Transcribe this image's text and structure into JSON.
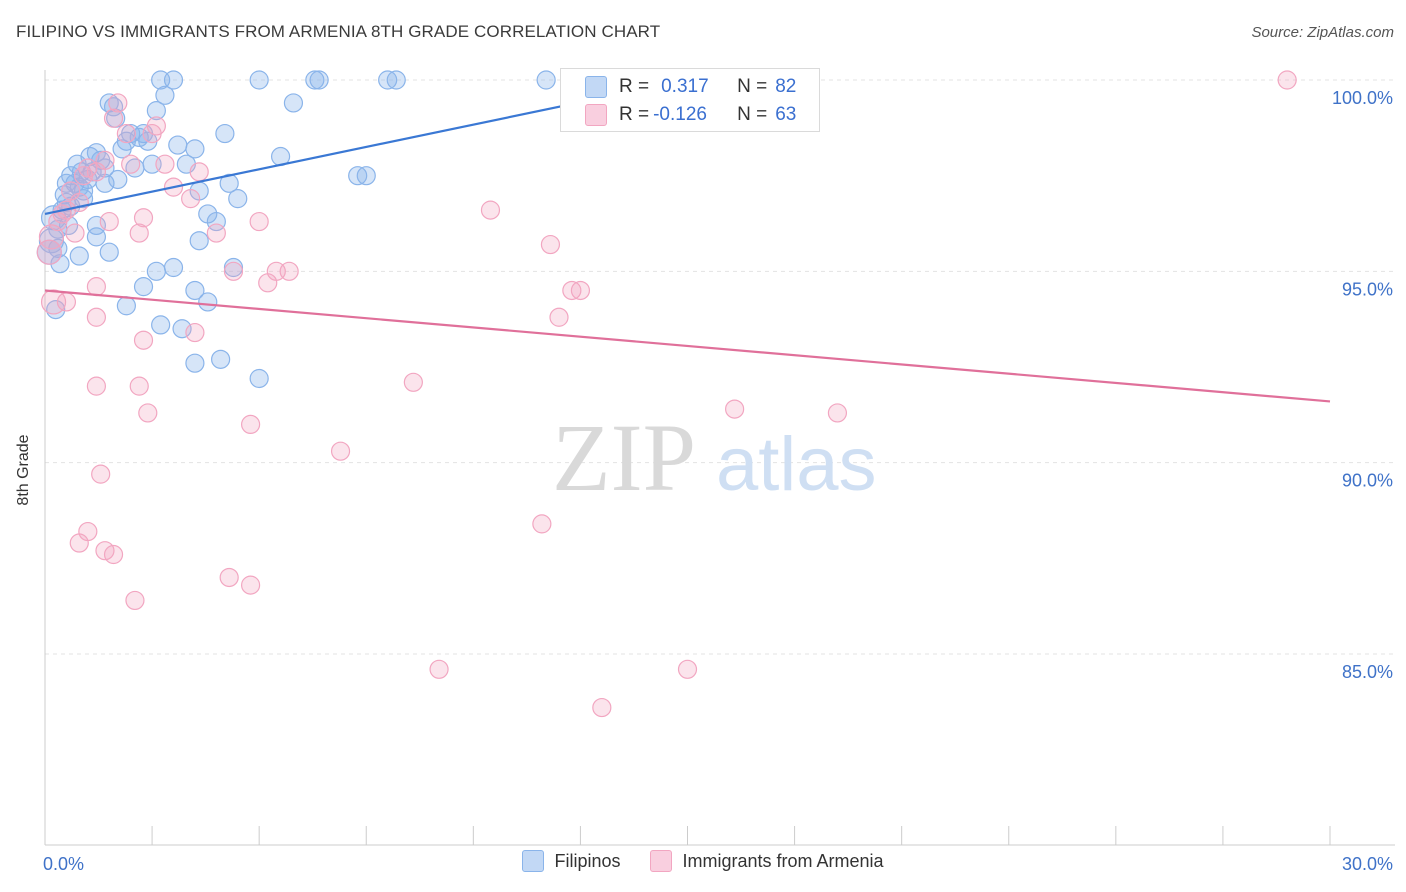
{
  "title": "FILIPINO VS IMMIGRANTS FROM ARMENIA 8TH GRADE CORRELATION CHART",
  "source": "Source: ZipAtlas.com",
  "watermark": {
    "zip": "ZIP",
    "atlas": "atlas"
  },
  "stats": [
    {
      "r_label": "R =",
      "r_value": "0.317",
      "n_label": "N =",
      "n_value": "82",
      "color": "#8ab4ea",
      "fill": "#c2d8f5"
    },
    {
      "r_label": "R =",
      "r_value": "-0.126",
      "n_label": "N =",
      "n_value": "63",
      "color": "#f2a6c1",
      "fill": "#f9cfdf"
    }
  ],
  "legend": [
    {
      "label": "Filipinos",
      "color": "#8ab4ea",
      "fill": "#c2d8f5"
    },
    {
      "label": "Immigrants from Armenia",
      "color": "#f2a6c1",
      "fill": "#f9cfdf"
    }
  ],
  "chart_data": {
    "type": "scatter",
    "title": "FILIPINO VS IMMIGRANTS FROM ARMENIA 8TH GRADE CORRELATION CHART",
    "xlabel": "",
    "ylabel": "8th Grade",
    "xlim": [
      0,
      30
    ],
    "ylim": [
      80,
      100.5
    ],
    "x_tick_labels": [
      "0.0%",
      "30.0%"
    ],
    "y_ticks": [
      85,
      90,
      95,
      100
    ],
    "y_tick_labels": [
      "85.0%",
      "90.0%",
      "95.0%",
      "100.0%"
    ],
    "grid": true,
    "series": [
      {
        "name": "Filipinos",
        "color": "#3a78d4",
        "point_color": "#8ab4ea",
        "trend": {
          "x": [
            0,
            15
          ],
          "y": [
            96.5,
            100.0
          ]
        },
        "points": [
          [
            0.1,
            95.5
          ],
          [
            0.15,
            95.8
          ],
          [
            0.2,
            96.4
          ],
          [
            0.25,
            94.0
          ],
          [
            0.3,
            96.1
          ],
          [
            0.35,
            95.2
          ],
          [
            0.4,
            96.6
          ],
          [
            0.45,
            97.0
          ],
          [
            0.5,
            97.3
          ],
          [
            0.55,
            96.2
          ],
          [
            0.6,
            97.5
          ],
          [
            0.7,
            97.3
          ],
          [
            0.75,
            97.8
          ],
          [
            0.8,
            97.2
          ],
          [
            0.85,
            97.6
          ],
          [
            0.9,
            96.9
          ],
          [
            1.0,
            97.4
          ],
          [
            1.05,
            98.0
          ],
          [
            1.1,
            97.6
          ],
          [
            1.2,
            98.1
          ],
          [
            1.3,
            97.9
          ],
          [
            1.4,
            97.7
          ],
          [
            1.5,
            99.4
          ],
          [
            1.6,
            99.3
          ],
          [
            1.65,
            99.0
          ],
          [
            1.7,
            97.4
          ],
          [
            1.8,
            98.2
          ],
          [
            1.9,
            98.4
          ],
          [
            2.0,
            98.6
          ],
          [
            2.1,
            97.7
          ],
          [
            2.2,
            98.5
          ],
          [
            2.3,
            98.6
          ],
          [
            2.4,
            98.4
          ],
          [
            2.5,
            97.8
          ],
          [
            2.6,
            99.2
          ],
          [
            2.7,
            100.0
          ],
          [
            2.8,
            99.6
          ],
          [
            3.0,
            100.0
          ],
          [
            3.1,
            98.3
          ],
          [
            3.3,
            97.8
          ],
          [
            3.5,
            98.2
          ],
          [
            3.6,
            97.1
          ],
          [
            3.8,
            96.5
          ],
          [
            4.0,
            96.3
          ],
          [
            4.2,
            98.6
          ],
          [
            4.3,
            97.3
          ],
          [
            4.5,
            96.9
          ],
          [
            5.0,
            100.0
          ],
          [
            5.5,
            98.0
          ],
          [
            5.8,
            99.4
          ],
          [
            6.3,
            100.0
          ],
          [
            6.4,
            100.0
          ],
          [
            7.3,
            97.5
          ],
          [
            7.5,
            97.5
          ],
          [
            8.0,
            100.0
          ],
          [
            8.2,
            100.0
          ],
          [
            11.7,
            100.0
          ],
          [
            16.6,
            100.0
          ],
          [
            0.3,
            95.6
          ],
          [
            0.6,
            96.7
          ],
          [
            1.2,
            96.2
          ],
          [
            1.5,
            95.5
          ],
          [
            2.3,
            94.6
          ],
          [
            2.6,
            95.0
          ],
          [
            1.9,
            94.1
          ],
          [
            2.7,
            93.6
          ],
          [
            3.0,
            95.1
          ],
          [
            3.5,
            94.5
          ],
          [
            3.8,
            94.2
          ],
          [
            4.1,
            92.7
          ],
          [
            5.0,
            92.2
          ],
          [
            3.5,
            92.6
          ],
          [
            3.2,
            93.5
          ],
          [
            4.4,
            95.1
          ],
          [
            3.6,
            95.8
          ],
          [
            0.8,
            95.4
          ],
          [
            1.2,
            95.9
          ],
          [
            0.5,
            96.8
          ],
          [
            1.4,
            97.3
          ],
          [
            0.9,
            97.1
          ]
        ]
      },
      {
        "name": "Immigrants from Armenia",
        "color": "#e0709a",
        "point_color": "#f2a6c1",
        "trend": {
          "x": [
            0,
            30
          ],
          "y": [
            94.5,
            91.6
          ]
        },
        "points": [
          [
            0.1,
            95.5
          ],
          [
            0.15,
            95.9
          ],
          [
            0.2,
            94.2
          ],
          [
            0.3,
            96.3
          ],
          [
            0.4,
            96.5
          ],
          [
            0.5,
            96.6
          ],
          [
            0.6,
            97.1
          ],
          [
            0.7,
            96.0
          ],
          [
            0.8,
            96.8
          ],
          [
            0.9,
            97.5
          ],
          [
            1.0,
            97.7
          ],
          [
            1.2,
            97.6
          ],
          [
            1.4,
            97.9
          ],
          [
            1.5,
            96.3
          ],
          [
            1.6,
            99.0
          ],
          [
            1.7,
            99.4
          ],
          [
            1.9,
            98.6
          ],
          [
            2.0,
            97.8
          ],
          [
            2.2,
            96.0
          ],
          [
            2.3,
            96.4
          ],
          [
            2.5,
            98.6
          ],
          [
            2.6,
            98.8
          ],
          [
            2.8,
            97.8
          ],
          [
            3.0,
            97.2
          ],
          [
            3.4,
            96.9
          ],
          [
            3.6,
            97.6
          ],
          [
            4.0,
            96.0
          ],
          [
            4.4,
            95.0
          ],
          [
            5.0,
            96.3
          ],
          [
            5.4,
            95.0
          ],
          [
            5.7,
            95.0
          ],
          [
            0.5,
            94.2
          ],
          [
            1.2,
            94.6
          ],
          [
            1.2,
            93.8
          ],
          [
            2.3,
            93.2
          ],
          [
            2.2,
            92.0
          ],
          [
            1.2,
            92.0
          ],
          [
            2.4,
            91.3
          ],
          [
            4.8,
            91.0
          ],
          [
            1.3,
            89.7
          ],
          [
            1.0,
            88.2
          ],
          [
            0.8,
            87.9
          ],
          [
            1.4,
            87.7
          ],
          [
            1.6,
            87.6
          ],
          [
            2.1,
            86.4
          ],
          [
            4.3,
            87.0
          ],
          [
            4.8,
            86.8
          ],
          [
            6.9,
            90.3
          ],
          [
            8.6,
            92.1
          ],
          [
            10.4,
            96.6
          ],
          [
            11.8,
            95.7
          ],
          [
            11.6,
            88.4
          ],
          [
            12.0,
            93.8
          ],
          [
            12.3,
            94.5
          ],
          [
            12.5,
            94.5
          ],
          [
            15.0,
            84.6
          ],
          [
            16.1,
            91.4
          ],
          [
            18.5,
            91.3
          ],
          [
            29.0,
            100.0
          ],
          [
            9.2,
            84.6
          ],
          [
            13.0,
            83.6
          ],
          [
            3.5,
            93.4
          ],
          [
            5.2,
            94.7
          ]
        ]
      }
    ]
  }
}
